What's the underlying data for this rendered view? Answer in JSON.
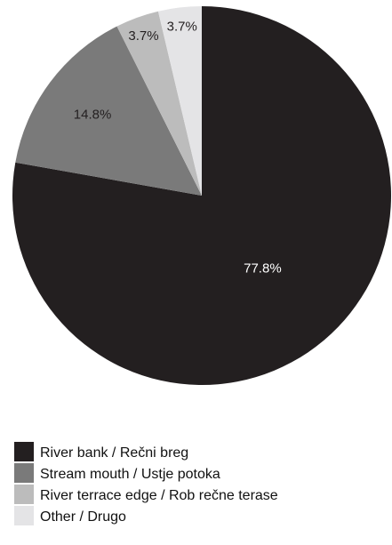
{
  "chart_data": {
    "type": "pie",
    "labels": [
      "River bank / Rečni breg",
      "Stream mouth / Ustje potoka",
      "River terrace edge / Rob rečne terase",
      "Other / Drugo"
    ],
    "values": [
      77.8,
      14.8,
      3.7,
      3.7
    ],
    "value_labels": [
      "77.8%",
      "14.8%",
      "3.7%",
      "3.7%"
    ],
    "colors": [
      "#231f20",
      "#7a7a7a",
      "#bcbcbc",
      "#e4e4e6"
    ],
    "label_colors": [
      "#ffffff",
      "#231f20",
      "#231f20",
      "#231f20"
    ],
    "start": "top, clockwise",
    "legend_position": "bottom-left"
  }
}
